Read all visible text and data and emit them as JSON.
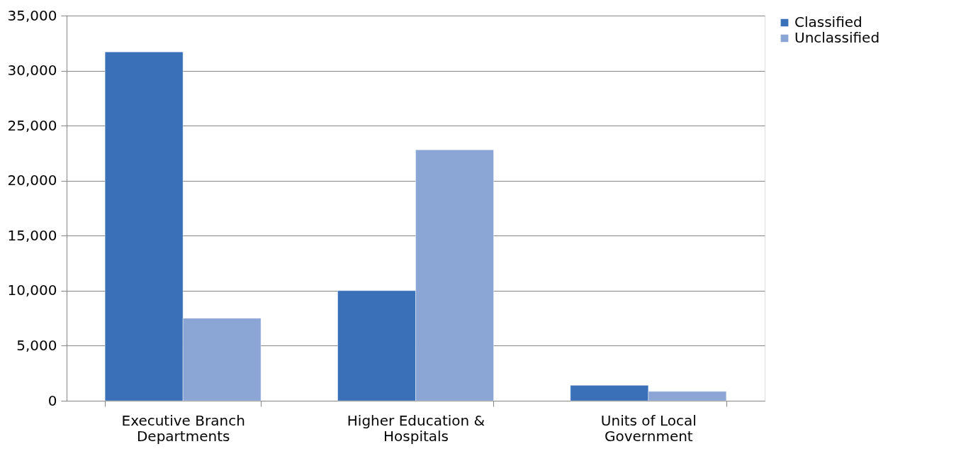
{
  "chart_data": {
    "type": "bar",
    "categories": [
      "Executive Branch Departments",
      "Higher Education & Hospitals",
      "Units of Local Government"
    ],
    "series": [
      {
        "name": "Classified",
        "color": "#3a70b8",
        "values": [
          31700,
          10000,
          1400
        ]
      },
      {
        "name": "Unclassified",
        "color": "#8ba6d4",
        "values": [
          7500,
          22800,
          850
        ]
      }
    ],
    "ylim": [
      0,
      35000
    ],
    "yticks": [
      {
        "value": 0,
        "label": "0"
      },
      {
        "value": 5000,
        "label": "5,000"
      },
      {
        "value": 10000,
        "label": "10,000"
      },
      {
        "value": 15000,
        "label": "15,000"
      },
      {
        "value": 20000,
        "label": "20,000"
      },
      {
        "value": 25000,
        "label": "25,000"
      },
      {
        "value": 30000,
        "label": "30,000"
      },
      {
        "value": 35000,
        "label": "35,000"
      }
    ],
    "grid": "y",
    "legend": "right"
  }
}
